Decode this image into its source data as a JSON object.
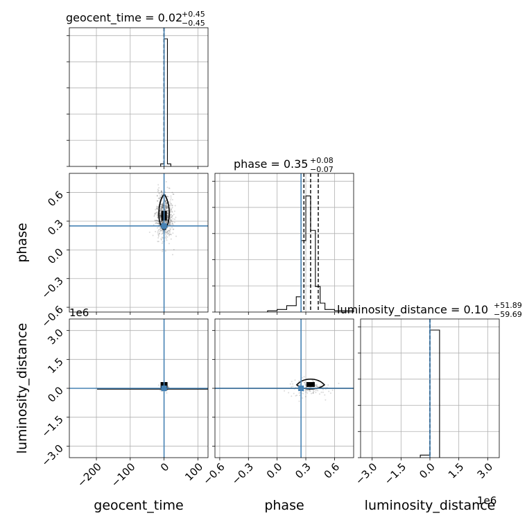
{
  "chart_data": {
    "type": "corner",
    "parameters": [
      "geocent_time",
      "phase",
      "luminosity_distance"
    ],
    "axis_offsets": {
      "luminosity_distance": "1e6"
    },
    "truths": {
      "geocent_time": 0.0,
      "phase": 0.25,
      "luminosity_distance": 0.0
    },
    "titles": [
      {
        "param": "geocent_time",
        "text": "geocent_time = 0.02",
        "plus": "+0.45",
        "minus": "−0.45"
      },
      {
        "param": "phase",
        "text": "phase = 0.35",
        "plus": "+0.08",
        "minus": "−0.07"
      },
      {
        "param": "luminosity_distance",
        "text": "luminosity_distance = 0.10",
        "plus": "+51.89",
        "minus": "−59.69"
      }
    ],
    "xlabels": [
      "geocent_time",
      "phase",
      "luminosity_distance"
    ],
    "ylabels": [
      "phase",
      "luminosity_distance"
    ],
    "ranges": {
      "geocent_time": [
        -280,
        130
      ],
      "phase": [
        -0.65,
        0.8
      ],
      "luminosity_distance": [
        -3600000,
        3600000
      ]
    },
    "ticks": {
      "geocent_time": {
        "values": [
          -200,
          -100,
          0,
          100
        ],
        "labels": [
          "−200",
          "−100",
          "0",
          "100"
        ]
      },
      "phase": {
        "values": [
          -0.6,
          -0.3,
          0.0,
          0.3,
          0.6
        ],
        "labels": [
          "−0.6",
          "−0.3",
          "0.0",
          "0.3",
          "0.6"
        ]
      },
      "luminosity_distance": {
        "values": [
          -3000000,
          -1500000,
          0,
          1500000,
          3000000
        ],
        "labels": [
          "−3.0",
          "−1.5",
          "0.0",
          "1.5",
          "3.0"
        ]
      }
    },
    "quantiles": {
      "geocent_time": [
        -0.43,
        0.02,
        0.47
      ],
      "phase": [
        0.28,
        0.35,
        0.43
      ],
      "luminosity_distance": [
        -59.59,
        0.1,
        51.99
      ]
    },
    "histograms": {
      "geocent_time": {
        "edges": [
          -10,
          0,
          10,
          20
        ],
        "counts": [
          0.02,
          1.0,
          0.02
        ]
      },
      "phase": {
        "edges": [
          -0.1,
          0.0,
          0.1,
          0.2,
          0.25,
          0.3,
          0.35,
          0.4,
          0.45,
          0.5,
          0.6,
          0.8
        ],
        "counts": [
          0.01,
          0.02,
          0.05,
          0.12,
          0.56,
          0.91,
          0.64,
          0.2,
          0.07,
          0.02,
          0.01
        ]
      },
      "luminosity_distance": {
        "edges": [
          -500000,
          0,
          500000
        ],
        "counts": [
          0.02,
          1.0
        ]
      }
    },
    "grid": true
  }
}
